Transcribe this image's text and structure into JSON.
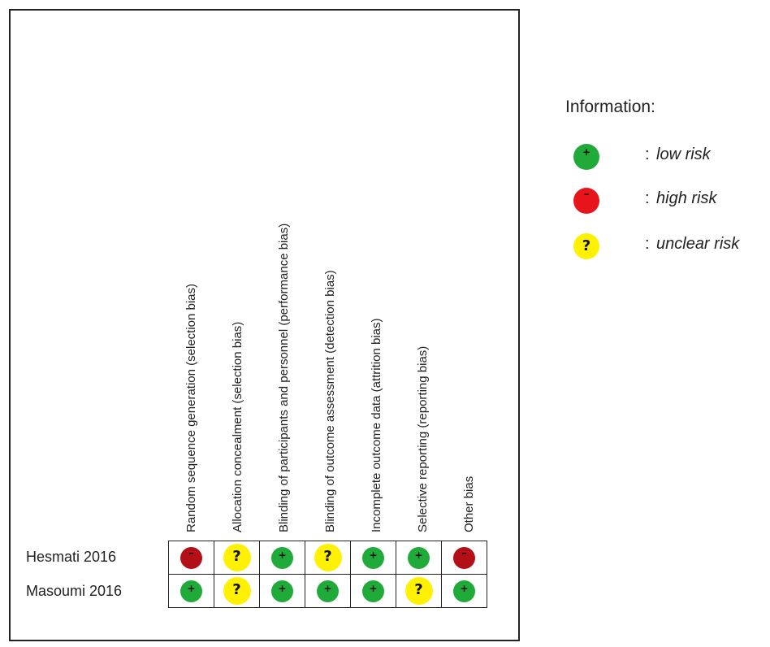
{
  "columns": [
    "Random sequence generation (selection bias)",
    "Allocation concealment (selection bias)",
    "Blinding of participants and personnel (performance bias)",
    "Blinding of outcome assessment (detection bias)",
    "Incomplete outcome data (attrition bias)",
    "Selective reporting (reporting bias)",
    "Other bias"
  ],
  "studies": [
    {
      "name": "Hesmati 2016",
      "ratings": [
        "high",
        "unclear",
        "low",
        "unclear",
        "low",
        "low",
        "high"
      ]
    },
    {
      "name": "Masoumi 2016",
      "ratings": [
        "low",
        "unclear",
        "low",
        "low",
        "low",
        "unclear",
        "low"
      ]
    }
  ],
  "symbols": {
    "low": "+",
    "high": "–",
    "unclear": "?"
  },
  "colors": {
    "low": "#1faa3a",
    "high": "#b30f16",
    "unclear": "#fff200",
    "legend_high": "#e8141c"
  },
  "legend": {
    "title": "Information:",
    "items": [
      {
        "key": "low",
        "symbol": "+",
        "text": "low risk"
      },
      {
        "key": "high",
        "symbol": "–",
        "text": "high risk"
      },
      {
        "key": "unclear",
        "symbol": "?",
        "text": "unclear risk"
      }
    ]
  }
}
